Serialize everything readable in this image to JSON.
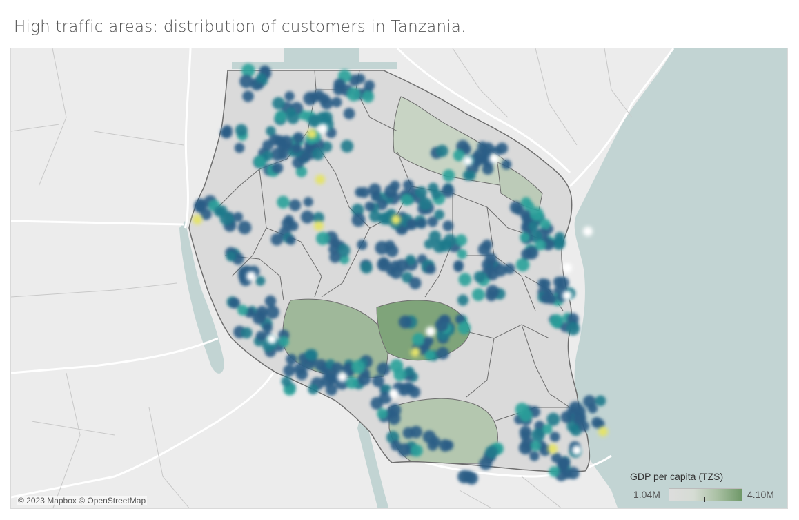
{
  "title": "High traffic areas: distribution of customers in Tanzania.",
  "map": {
    "attribution": "© 2023 Mapbox © OpenStreetMap",
    "colors": {
      "land": "#ececec",
      "water": "#c2d4d3",
      "border": "#ffffff",
      "country_fill": "#dadada",
      "region_border": "#6e6e6e",
      "gdp_low": "#dddddd",
      "gdp_high": "#6f9868"
    }
  },
  "legend": {
    "title": "GDP per capita (TZS)",
    "min_label": "1.04M",
    "max_label": "4.10M"
  }
}
